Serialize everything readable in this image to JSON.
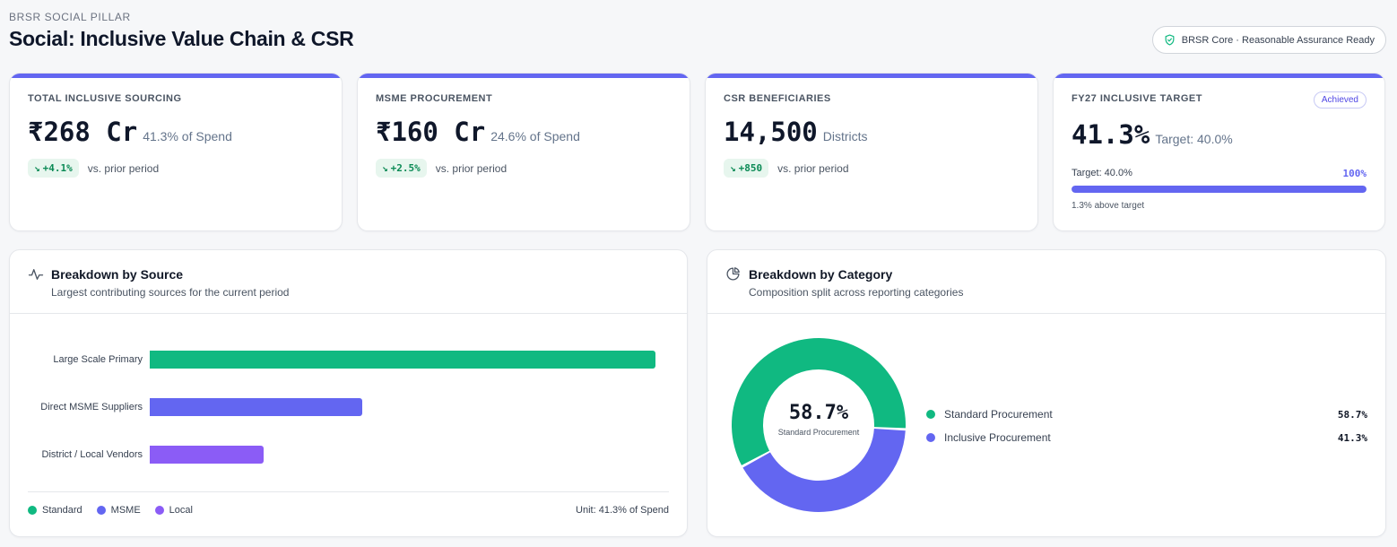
{
  "header": {
    "eyebrow": "BRSR SOCIAL PILLAR",
    "title": "Social: Inclusive Value Chain & CSR",
    "status_chip": "BRSR Core · Reasonable Assurance Ready",
    "status_icon": "shield-check-icon"
  },
  "colors": {
    "accent": "#6366f1",
    "standard": "#10b981",
    "msme": "#6366f1",
    "local": "#8b5cf6",
    "positive": "#0b8a55"
  },
  "kpis": [
    {
      "label": "TOTAL INCLUSIVE SOURCING",
      "value": "₹268 Cr",
      "unit": "41.3% of Spend",
      "delta": "+4.1%",
      "delta_note": "vs. prior period"
    },
    {
      "label": "MSME PROCUREMENT",
      "value": "₹160 Cr",
      "unit": "24.6% of Spend",
      "delta": "+2.5%",
      "delta_note": "vs. prior period"
    },
    {
      "label": "CSR BENEFICIARIES",
      "value": "14,500",
      "unit": "Districts",
      "delta": "+850",
      "delta_note": "vs. prior period"
    },
    {
      "label": "FY27 INCLUSIVE TARGET",
      "value": "41.3%",
      "unit": "Target: 40.0%",
      "badge": "Achieved",
      "target_label": "Target: 40.0%",
      "progress_label": "100%",
      "progress": 1.0,
      "footnote": "1.3% above target"
    }
  ],
  "source_panel": {
    "title": "Breakdown by Source",
    "subtitle": "Largest contributing sources for the current period",
    "icon": "activity-icon",
    "legend": [
      "Standard",
      "MSME",
      "Local"
    ],
    "unit_note": "Unit: 41.3% of Spend"
  },
  "category_panel": {
    "title": "Breakdown by Category",
    "subtitle": "Composition split across reporting categories",
    "icon": "pie-chart-icon",
    "center_value": "58.7%",
    "center_caption": "Standard Procurement",
    "items": [
      {
        "name": "Standard Procurement",
        "value": "58.7%"
      },
      {
        "name": "Inclusive Procurement",
        "value": "41.3%"
      }
    ]
  },
  "chart_data": [
    {
      "type": "bar",
      "orientation": "horizontal",
      "categories": [
        "Large Scale Primary",
        "Direct MSME Suppliers",
        "District / Local Vendors"
      ],
      "values": [
        100,
        42,
        22.5
      ],
      "series_colors": [
        "#10b981",
        "#6366f1",
        "#8b5cf6"
      ],
      "legend": [
        "Standard",
        "MSME",
        "Local"
      ]
    },
    {
      "type": "pie",
      "donut": true,
      "labels": [
        "Standard Procurement",
        "Inclusive Procurement"
      ],
      "values": [
        58.7,
        41.3
      ],
      "colors": [
        "#10b981",
        "#6366f1"
      ]
    }
  ]
}
